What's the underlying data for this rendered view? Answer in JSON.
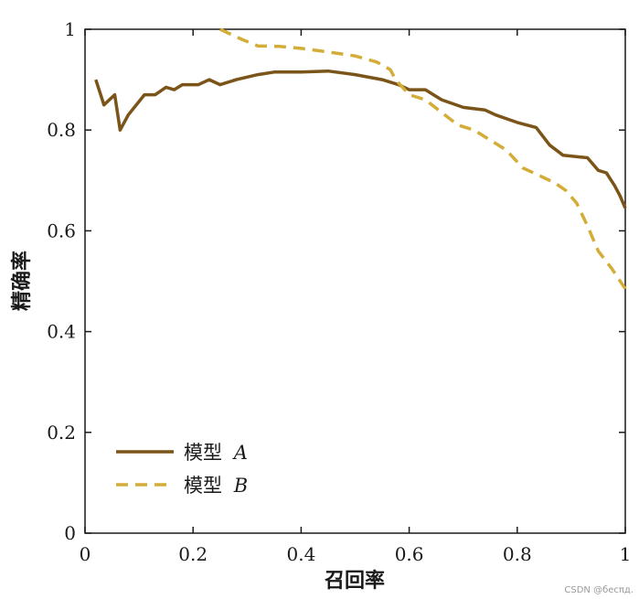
{
  "chart_data": {
    "type": "line",
    "xlabel": "召回率",
    "ylabel": "精确率",
    "xlim": [
      0,
      1
    ],
    "ylim": [
      0,
      1
    ],
    "xticks": [
      "0",
      "0.2",
      "0.4",
      "0.6",
      "0.8",
      "1"
    ],
    "yticks": [
      "0",
      "0.2",
      "0.4",
      "0.6",
      "0.8",
      "1"
    ],
    "legend_position": "bottom-left",
    "grid": false,
    "series": [
      {
        "name_main": "模型",
        "name_var": "A",
        "color": "#7a5418",
        "dash": "solid",
        "points": [
          [
            0.02,
            0.9
          ],
          [
            0.035,
            0.85
          ],
          [
            0.055,
            0.87
          ],
          [
            0.065,
            0.8
          ],
          [
            0.08,
            0.83
          ],
          [
            0.11,
            0.87
          ],
          [
            0.13,
            0.87
          ],
          [
            0.15,
            0.885
          ],
          [
            0.165,
            0.88
          ],
          [
            0.18,
            0.89
          ],
          [
            0.21,
            0.89
          ],
          [
            0.23,
            0.9
          ],
          [
            0.25,
            0.89
          ],
          [
            0.28,
            0.9
          ],
          [
            0.32,
            0.91
          ],
          [
            0.35,
            0.915
          ],
          [
            0.4,
            0.915
          ],
          [
            0.45,
            0.917
          ],
          [
            0.5,
            0.91
          ],
          [
            0.55,
            0.9
          ],
          [
            0.58,
            0.89
          ],
          [
            0.6,
            0.88
          ],
          [
            0.63,
            0.88
          ],
          [
            0.66,
            0.86
          ],
          [
            0.7,
            0.845
          ],
          [
            0.74,
            0.84
          ],
          [
            0.76,
            0.83
          ],
          [
            0.8,
            0.815
          ],
          [
            0.835,
            0.805
          ],
          [
            0.86,
            0.77
          ],
          [
            0.885,
            0.75
          ],
          [
            0.93,
            0.745
          ],
          [
            0.95,
            0.72
          ],
          [
            0.965,
            0.715
          ],
          [
            0.98,
            0.69
          ],
          [
            0.99,
            0.67
          ],
          [
            1.0,
            0.645
          ]
        ]
      },
      {
        "name_main": "模型",
        "name_var": "B",
        "color": "#d4ad38",
        "dash": "dashed",
        "points": [
          [
            0.25,
            1.0
          ],
          [
            0.27,
            0.99
          ],
          [
            0.29,
            0.98
          ],
          [
            0.32,
            0.967
          ],
          [
            0.36,
            0.966
          ],
          [
            0.4,
            0.962
          ],
          [
            0.45,
            0.955
          ],
          [
            0.5,
            0.947
          ],
          [
            0.54,
            0.935
          ],
          [
            0.565,
            0.92
          ],
          [
            0.575,
            0.9
          ],
          [
            0.6,
            0.87
          ],
          [
            0.63,
            0.86
          ],
          [
            0.66,
            0.835
          ],
          [
            0.69,
            0.81
          ],
          [
            0.72,
            0.8
          ],
          [
            0.75,
            0.78
          ],
          [
            0.78,
            0.76
          ],
          [
            0.81,
            0.725
          ],
          [
            0.85,
            0.705
          ],
          [
            0.87,
            0.695
          ],
          [
            0.89,
            0.68
          ],
          [
            0.91,
            0.655
          ],
          [
            0.93,
            0.61
          ],
          [
            0.95,
            0.56
          ],
          [
            0.975,
            0.525
          ],
          [
            1.0,
            0.485
          ]
        ]
      }
    ]
  },
  "watermark": "CSDN @бесπд."
}
